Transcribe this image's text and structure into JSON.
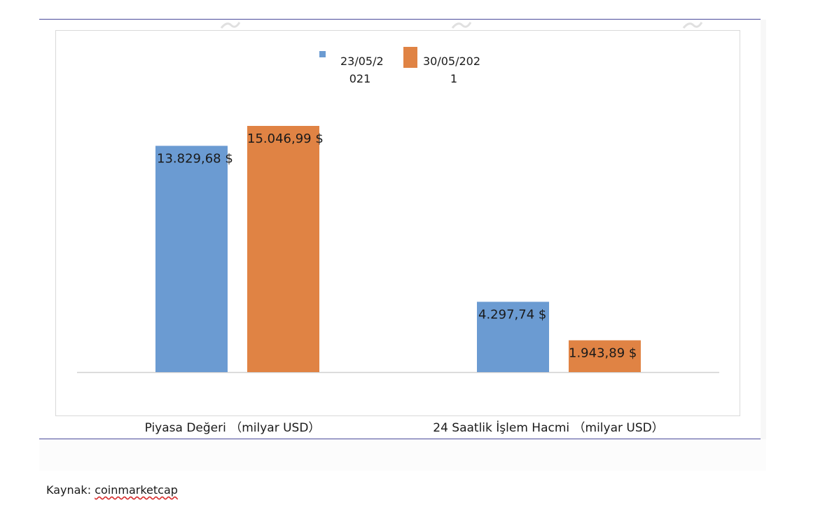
{
  "page": {
    "source_label": "Kaynak:",
    "source_name": "coinmarketcap"
  },
  "colors": {
    "series_1": "#6b9bd2",
    "series_2": "#e08344",
    "rule": "#4a4a9a",
    "frame": "#d9d9d9",
    "baseline": "#d0d0d0",
    "watermark": "#e0e0e0"
  },
  "chart_data": {
    "type": "bar",
    "categories": [
      "Piyasa Değeri （milyar USD）",
      "24 Saatlik İşlem Hacmi （milyar USD）"
    ],
    "series": [
      {
        "name": "23/05/2021",
        "legend_lines": [
          "23/05/2",
          "021"
        ],
        "values": [
          13829.68,
          4297.74
        ],
        "labels": [
          "13.829,68 $",
          "4.297,74 $"
        ],
        "color": "#6b9bd2"
      },
      {
        "name": "30/05/2021",
        "legend_lines": [
          "30/05/202",
          "1"
        ],
        "values": [
          15046.99,
          1943.89
        ],
        "labels": [
          "15.046,99 $",
          "1.943,89 $"
        ],
        "color": "#e08344"
      }
    ],
    "legend_position": "top",
    "grid": false,
    "value_axis_visible": false,
    "title": "",
    "xlabel": "",
    "ylabel": ""
  }
}
